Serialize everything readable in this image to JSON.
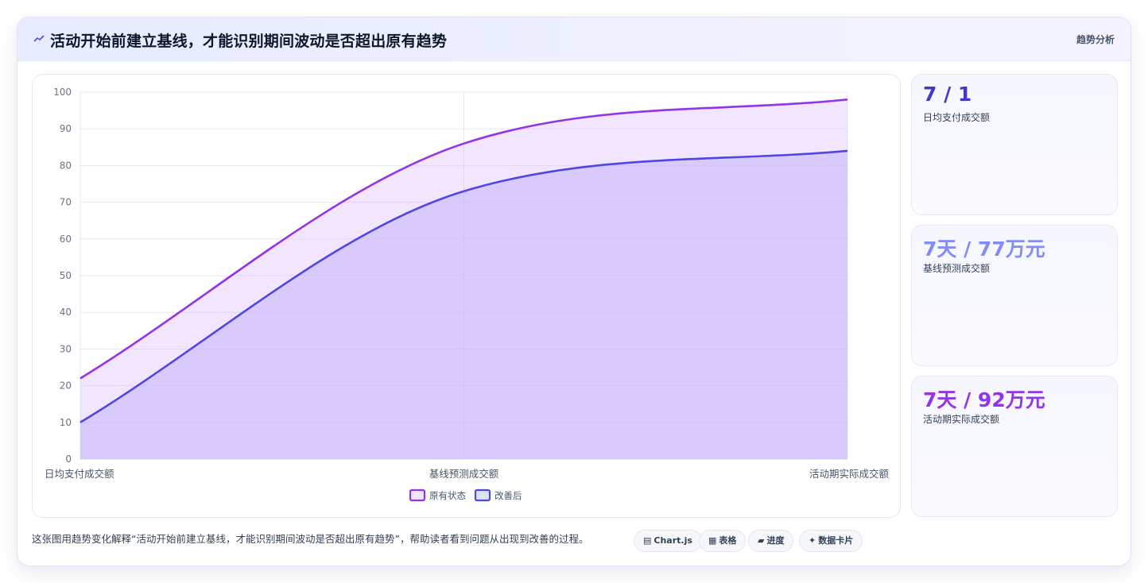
{
  "header": {
    "title": "活动开始前建立基线，才能识别期间波动是否超出原有趋势",
    "tag": "趋势分析",
    "icon": "trend-line-icon"
  },
  "chart_data": {
    "type": "area",
    "categories": [
      "日均支付成交额",
      "基线预测成交额",
      "活动期实际成交额"
    ],
    "series": [
      {
        "name": "原有状态",
        "values": [
          22,
          86,
          98
        ],
        "color": "#9333ea"
      },
      {
        "name": "改善后",
        "values": [
          10,
          73,
          84
        ],
        "color": "#4f46e5"
      }
    ],
    "ylim": [
      0,
      100
    ],
    "yticks": [
      "0",
      "10",
      "20",
      "30",
      "40",
      "50",
      "60",
      "70",
      "80",
      "90",
      "100"
    ],
    "grid": true,
    "legend": "bottom"
  },
  "stats": [
    {
      "value": "7 / 1",
      "label": "日均支付成交额",
      "color": "#4338ca"
    },
    {
      "value": "7天 / 77万元",
      "label": "基线预测成交额",
      "color": "#818cf8"
    },
    {
      "value": "7天 / 92万元",
      "label": "活动期实际成交额",
      "color": "#9333ea"
    }
  ],
  "footer": {
    "description": "这张图用趋势变化解释“活动开始前建立基线，才能识别期间波动是否超出原有趋势”，帮助读者看到问题从出现到改善的过程。",
    "pills": [
      {
        "glyph": "▤",
        "label": "Chart.js"
      },
      {
        "glyph": "▦",
        "label": "表格"
      },
      {
        "glyph": "▰",
        "label": "进度"
      },
      {
        "glyph": "✦",
        "label": "数据卡片"
      }
    ]
  }
}
